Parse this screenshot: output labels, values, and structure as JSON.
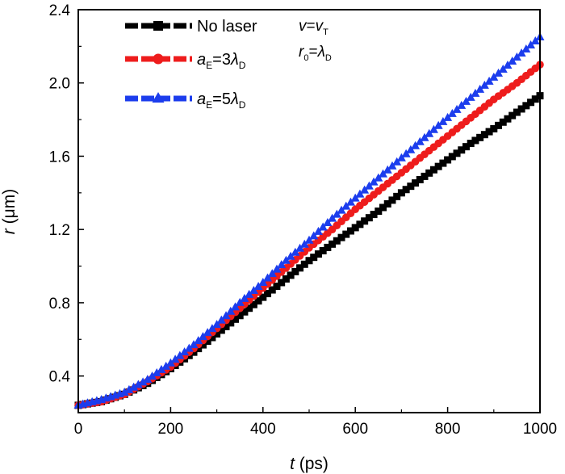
{
  "chart_data": {
    "type": "line",
    "title": "",
    "xlabel": {
      "var": "t",
      "unit": "(ps)"
    },
    "ylabel": {
      "var": "r",
      "unit": "(μm)"
    },
    "xlim": [
      0,
      1000
    ],
    "ylim": [
      0.2,
      2.4
    ],
    "xticks": [
      "0",
      "200",
      "400",
      "600",
      "800",
      "1000"
    ],
    "yticks": [
      "0.4",
      "0.8",
      "1.2",
      "1.6",
      "2.0",
      "2.4"
    ],
    "legend_position": "top-left",
    "grid": false,
    "annotations": [
      {
        "main": "v",
        "eq": "=",
        "rhs": "v",
        "rhs_sub": "T"
      },
      {
        "main": "r",
        "main_sub": "0",
        "eq": "=",
        "rhs": "λ",
        "rhs_sub": "D"
      }
    ],
    "series": [
      {
        "legend": {
          "text": "No laser"
        },
        "color": "#000000",
        "marker": "square",
        "x": [
          0,
          50,
          100,
          150,
          200,
          250,
          300,
          350,
          400,
          450,
          500,
          550,
          600,
          650,
          700,
          750,
          800,
          850,
          900,
          950,
          1000
        ],
        "y": [
          0.24,
          0.26,
          0.3,
          0.36,
          0.44,
          0.53,
          0.63,
          0.73,
          0.83,
          0.93,
          1.03,
          1.12,
          1.21,
          1.3,
          1.4,
          1.49,
          1.58,
          1.67,
          1.75,
          1.84,
          1.93
        ]
      },
      {
        "legend": {
          "main": "a",
          "sub": "E",
          "eq": "=3",
          "rhs": "λ",
          "rhs_sub": "D"
        },
        "color": "#ee1c1c",
        "marker": "circle",
        "x": [
          0,
          50,
          100,
          150,
          200,
          250,
          300,
          350,
          400,
          450,
          500,
          550,
          600,
          650,
          700,
          750,
          800,
          850,
          900,
          950,
          1000
        ],
        "y": [
          0.24,
          0.26,
          0.3,
          0.37,
          0.45,
          0.55,
          0.66,
          0.77,
          0.88,
          0.99,
          1.1,
          1.2,
          1.31,
          1.41,
          1.51,
          1.61,
          1.71,
          1.81,
          1.91,
          2.0,
          2.1
        ]
      },
      {
        "legend": {
          "main": "a",
          "sub": "E",
          "eq": "=5",
          "rhs": "λ",
          "rhs_sub": "D"
        },
        "color": "#1c3ded",
        "marker": "triangle",
        "x": [
          0,
          50,
          100,
          150,
          200,
          250,
          300,
          350,
          400,
          450,
          500,
          550,
          600,
          650,
          700,
          750,
          800,
          850,
          900,
          950,
          1000
        ],
        "y": [
          0.24,
          0.27,
          0.31,
          0.38,
          0.47,
          0.57,
          0.68,
          0.8,
          0.91,
          1.03,
          1.14,
          1.26,
          1.37,
          1.48,
          1.59,
          1.7,
          1.81,
          1.92,
          2.03,
          2.14,
          2.25
        ]
      }
    ]
  }
}
